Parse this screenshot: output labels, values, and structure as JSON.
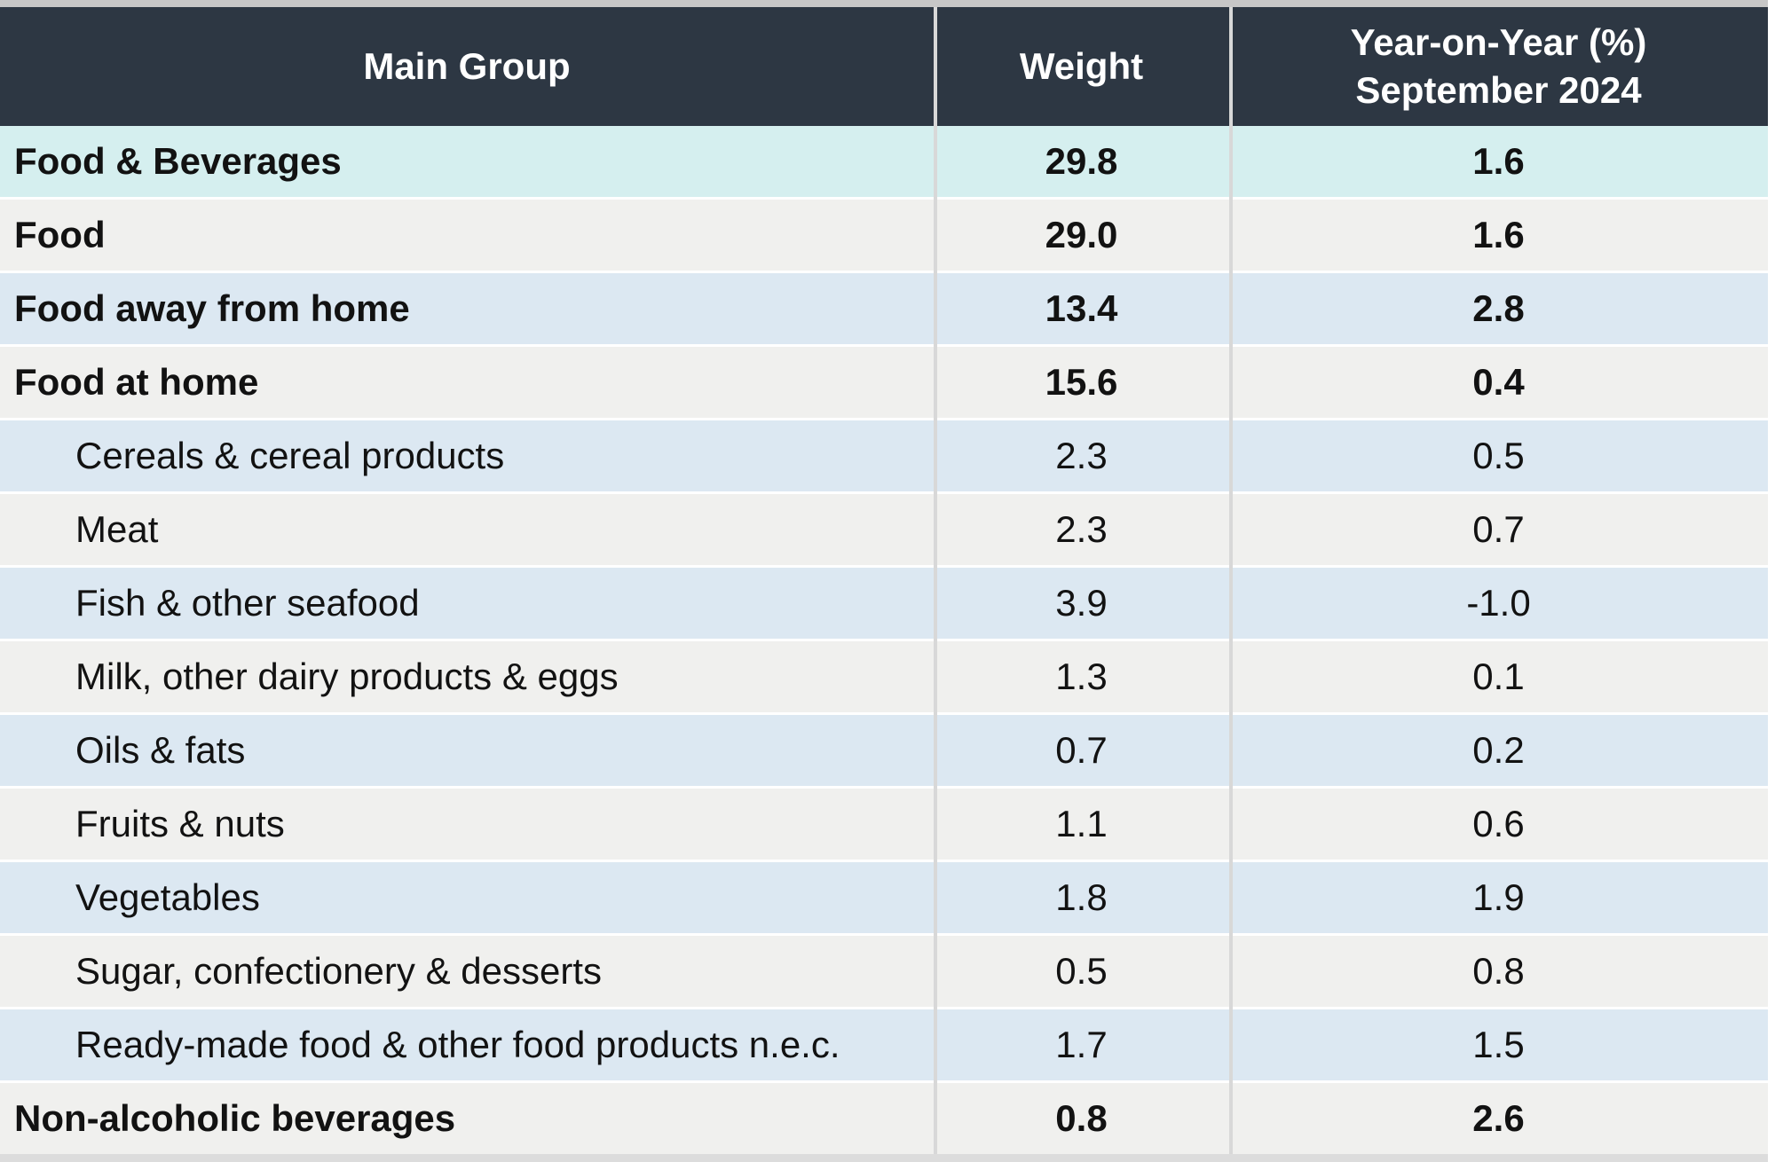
{
  "chart_data": {
    "type": "table",
    "columns": [
      "Main Group",
      "Weight",
      "Year-on-Year (%) September 2024"
    ],
    "header": {
      "main_group": "Main Group",
      "weight": "Weight",
      "yoy_line1": "Year-on-Year (%)",
      "yoy_line2": "September 2024"
    },
    "rows": [
      {
        "label": "Food & Beverages",
        "weight": "29.8",
        "yoy": "1.6",
        "level": "main"
      },
      {
        "label": "Food",
        "weight": "29.0",
        "yoy": "1.6",
        "level": "main"
      },
      {
        "label": "Food away from home",
        "weight": "13.4",
        "yoy": "2.8",
        "level": "main"
      },
      {
        "label": "Food at home",
        "weight": "15.6",
        "yoy": "0.4",
        "level": "main"
      },
      {
        "label": "Cereals & cereal products",
        "weight": "2.3",
        "yoy": "0.5",
        "level": "sub"
      },
      {
        "label": "Meat",
        "weight": "2.3",
        "yoy": "0.7",
        "level": "sub"
      },
      {
        "label": "Fish & other seafood",
        "weight": "3.9",
        "yoy": "-1.0",
        "level": "sub"
      },
      {
        "label": "Milk, other dairy products & eggs",
        "weight": "1.3",
        "yoy": "0.1",
        "level": "sub"
      },
      {
        "label": "Oils & fats",
        "weight": "0.7",
        "yoy": "0.2",
        "level": "sub"
      },
      {
        "label": "Fruits & nuts",
        "weight": "1.1",
        "yoy": "0.6",
        "level": "sub"
      },
      {
        "label": "Vegetables",
        "weight": "1.8",
        "yoy": "1.9",
        "level": "sub"
      },
      {
        "label": "Sugar, confectionery & desserts",
        "weight": "0.5",
        "yoy": "0.8",
        "level": "sub"
      },
      {
        "label": "Ready-made food & other food products n.e.c.",
        "weight": "1.7",
        "yoy": "1.5",
        "level": "sub"
      },
      {
        "label": "Non-alcoholic beverages",
        "weight": "0.8",
        "yoy": "2.6",
        "level": "main"
      }
    ]
  },
  "colors": {
    "header_bg": "#2d3743",
    "header_text": "#ffffff",
    "highlight_row_cyan": "#d5efef",
    "alt_row_blue": "#dce8f2",
    "alt_row_gray": "#f0f0ee",
    "grid_line": "#d8d8d8",
    "body_text": "#121212"
  }
}
